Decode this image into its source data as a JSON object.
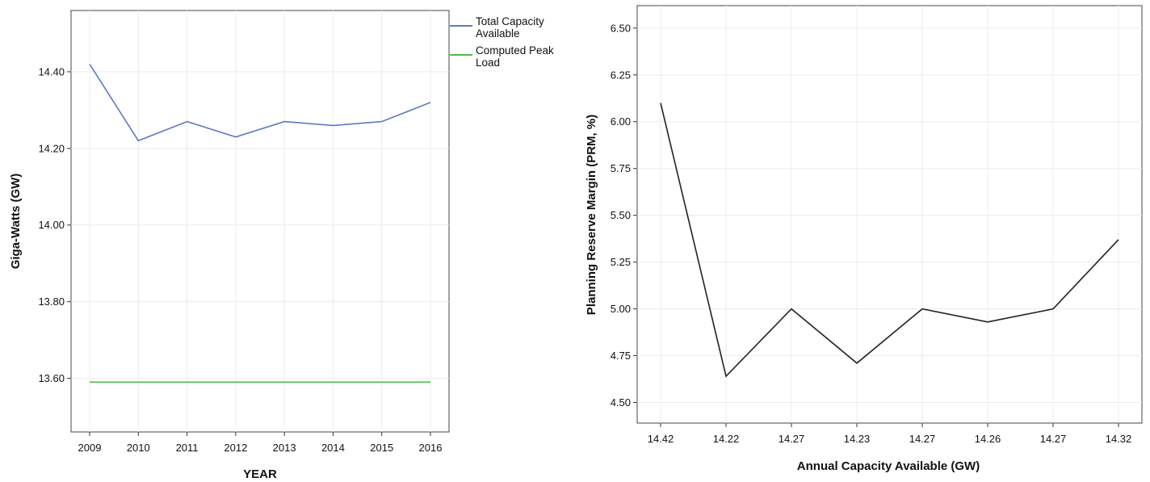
{
  "chart_data": [
    {
      "type": "line",
      "title": "",
      "xlabel": "YEAR",
      "ylabel": "Giga-Watts (GW)",
      "categories": [
        "2009",
        "2010",
        "2011",
        "2012",
        "2013",
        "2014",
        "2015",
        "2016"
      ],
      "y_ticks": [
        "13.60",
        "13.80",
        "14.00",
        "14.20",
        "14.40"
      ],
      "ylim": [
        13.46,
        14.56
      ],
      "grid": true,
      "legend_position": "right",
      "series": [
        {
          "name": "Total Capacity Available",
          "name_lines": [
            "Total Capacity",
            "Available"
          ],
          "color": "#5b79c4",
          "values": [
            14.42,
            14.22,
            14.27,
            14.23,
            14.27,
            14.26,
            14.27,
            14.32
          ]
        },
        {
          "name": "Computed Peak Load",
          "name_lines": [
            "Computed Peak",
            "Load"
          ],
          "color": "#4dbd4a",
          "values": [
            13.59,
            13.59,
            13.59,
            13.59,
            13.59,
            13.59,
            13.59,
            13.59
          ]
        }
      ]
    },
    {
      "type": "line",
      "title": "",
      "xlabel": "Annual Capacity Available (GW)",
      "ylabel": "Planning Reserve Margin (PRM, %)",
      "categories": [
        "14.42",
        "14.22",
        "14.27",
        "14.23",
        "14.27",
        "14.26",
        "14.27",
        "14.32"
      ],
      "y_ticks": [
        "4.50",
        "4.75",
        "5.00",
        "5.25",
        "5.50",
        "5.75",
        "6.00",
        "6.25",
        "6.50"
      ],
      "ylim": [
        4.39,
        6.62
      ],
      "grid": true,
      "series": [
        {
          "color": "#222222",
          "values": [
            6.1,
            4.64,
            5.0,
            4.71,
            5.0,
            4.93,
            5.0,
            5.37
          ]
        }
      ]
    }
  ]
}
